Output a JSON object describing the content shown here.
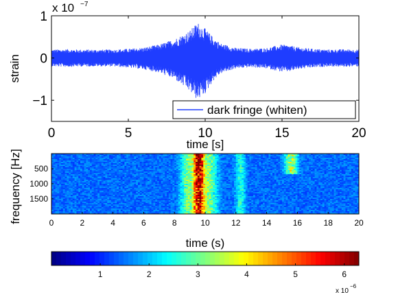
{
  "chart_data": [
    {
      "type": "line",
      "xlabel": "time [s]",
      "ylabel": "strain",
      "xlim": [
        0,
        20
      ],
      "ylim": [
        -1.5,
        1.0
      ],
      "y_exponent_label": "x 10",
      "y_exponent_power": "−7",
      "x_ticks": [
        "0",
        "5",
        "10",
        "15",
        "20"
      ],
      "y_ticks": [
        "1",
        "0",
        "−1"
      ],
      "legend": {
        "placement": "bottom-right",
        "label": "dark fringe (whiten)"
      },
      "series": [
        {
          "name": "dark fringe (whiten)",
          "color": "#1f3dff",
          "envelope_t": [
            0,
            1,
            2,
            3,
            4,
            5,
            6,
            7,
            8,
            9,
            9.5,
            10,
            10.5,
            11,
            12,
            13,
            14,
            15,
            15.5,
            16,
            17,
            18,
            19,
            20
          ],
          "envelope_max": [
            0.2,
            0.21,
            0.2,
            0.2,
            0.2,
            0.22,
            0.25,
            0.32,
            0.45,
            0.65,
            0.85,
            0.7,
            0.5,
            0.35,
            0.24,
            0.22,
            0.24,
            0.32,
            0.3,
            0.26,
            0.22,
            0.2,
            0.21,
            0.2
          ],
          "envelope_min": [
            -0.2,
            -0.21,
            -0.2,
            -0.2,
            -0.2,
            -0.23,
            -0.27,
            -0.35,
            -0.5,
            -0.8,
            -1.0,
            -0.85,
            -0.55,
            -0.37,
            -0.25,
            -0.22,
            -0.25,
            -0.33,
            -0.32,
            -0.27,
            -0.23,
            -0.2,
            -0.21,
            -0.2
          ]
        }
      ]
    },
    {
      "type": "heatmap",
      "xlabel": "time (s)",
      "ylabel": "frequency [Hz]",
      "xlim": [
        0,
        20
      ],
      "ylim": [
        0,
        2000
      ],
      "x_ticks": [
        "0",
        "2",
        "4",
        "6",
        "8",
        "10",
        "12",
        "14",
        "16",
        "18",
        "20"
      ],
      "y_ticks": [
        "500",
        "1000",
        "1500"
      ],
      "hot_regions": [
        {
          "t_center": 9.6,
          "t_width": 0.35,
          "intensity": 0.95
        },
        {
          "t_center": 8.9,
          "t_width": 0.5,
          "intensity": 0.35
        },
        {
          "t_center": 10.3,
          "t_width": 0.5,
          "intensity": 0.35
        },
        {
          "t_center": 15.6,
          "t_width": 0.4,
          "intensity": 0.45,
          "f_max": 700
        },
        {
          "t_center": 12.3,
          "t_width": 0.3,
          "intensity": 0.25
        }
      ]
    }
  ],
  "colorbar": {
    "ticks": [
      "1",
      "2",
      "3",
      "4",
      "5",
      "6"
    ],
    "tick_values": [
      1,
      2,
      3,
      4,
      5,
      6
    ],
    "range": [
      0,
      6.3
    ],
    "exponent_label": "x 10",
    "exponent_power": "−6",
    "colormap": "jet"
  }
}
